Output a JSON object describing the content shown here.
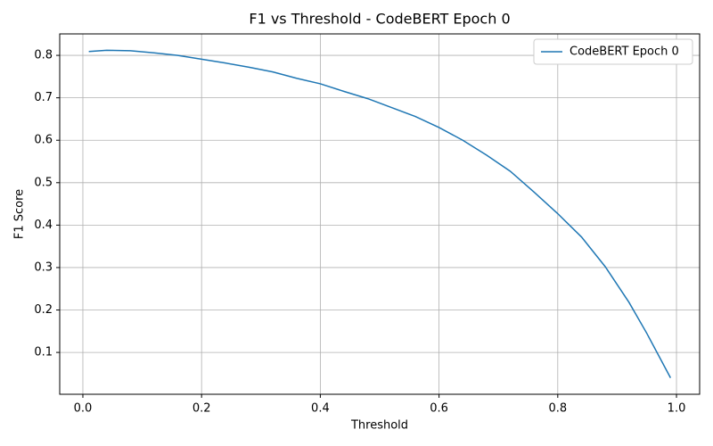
{
  "chart_data": {
    "type": "line",
    "title": "F1 vs Threshold - CodeBERT Epoch 0",
    "x_label": "Threshold",
    "y_label": "F1 Score",
    "x": [
      0.01,
      0.04,
      0.08,
      0.12,
      0.16,
      0.2,
      0.24,
      0.28,
      0.32,
      0.36,
      0.4,
      0.44,
      0.48,
      0.52,
      0.56,
      0.6,
      0.64,
      0.68,
      0.72,
      0.76,
      0.8,
      0.84,
      0.88,
      0.92,
      0.95,
      0.99
    ],
    "series": [
      {
        "name": "CodeBERT Epoch 0",
        "color": "#1f77b4",
        "values": [
          0.809,
          0.812,
          0.811,
          0.806,
          0.8,
          0.791,
          0.782,
          0.772,
          0.761,
          0.746,
          0.733,
          0.715,
          0.698,
          0.677,
          0.656,
          0.63,
          0.6,
          0.565,
          0.527,
          0.478,
          0.427,
          0.372,
          0.302,
          0.218,
          0.145,
          0.04
        ]
      }
    ],
    "xlim": [
      -0.039,
      1.039
    ],
    "ylim": [
      0.0014,
      0.8506
    ],
    "xticks": [
      {
        "value": 0,
        "label": "0.0"
      },
      0.2,
      0.4,
      0.6,
      0.8,
      {
        "value": 1,
        "label": "1.0"
      }
    ],
    "yticks": [
      0.1,
      0.2,
      0.3,
      0.4,
      0.5,
      0.6,
      0.7,
      0.8
    ],
    "grid": true,
    "legend": "upper-right"
  }
}
